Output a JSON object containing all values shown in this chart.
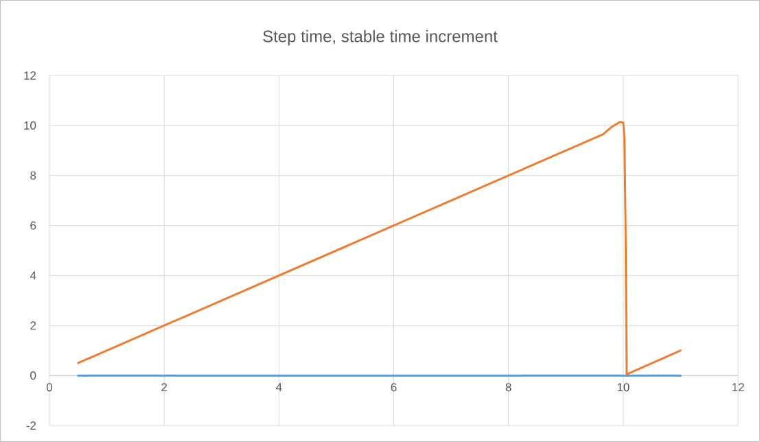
{
  "chart_data": {
    "type": "line",
    "title": "Step time, stable time increment",
    "series": [
      {
        "color": "#5b9bd5",
        "x": [
          0.5,
          11
        ],
        "values": [
          0,
          0
        ]
      },
      {
        "color": "#ed7d31",
        "x": [
          0.5,
          9.65,
          9.8,
          9.95,
          10.0,
          10.02,
          10.03,
          10.04,
          10.06,
          11
        ],
        "values": [
          0.5,
          9.65,
          9.95,
          10.15,
          10.1,
          9.5,
          8,
          6,
          0.05,
          1
        ]
      }
    ],
    "xlim": [
      0,
      12
    ],
    "xticks": [
      0,
      2,
      4,
      6,
      8,
      10,
      12
    ],
    "ylim": [
      -2,
      12
    ],
    "yticks": [
      -2,
      0,
      2,
      4,
      6,
      8,
      10,
      12
    ],
    "grid": true,
    "marker": "none",
    "line_style": "solid"
  }
}
